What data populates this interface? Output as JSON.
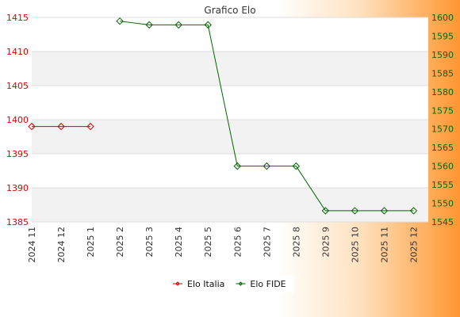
{
  "chart_data": {
    "type": "line",
    "title": "Grafico Elo",
    "categories": [
      "2024 11",
      "2024 12",
      "2025 1",
      "2025 2",
      "2025 3",
      "2025 4",
      "2025 5",
      "2025 6",
      "2025 7",
      "2025 8",
      "2025 9",
      "2025 10",
      "2025 11",
      "2025 12"
    ],
    "y_left": {
      "ticks": [
        1385,
        1390,
        1395,
        1400,
        1405,
        1410,
        1415
      ],
      "range": [
        1385,
        1415
      ],
      "color": "#dd0000"
    },
    "y_right": {
      "ticks": [
        1545,
        1550,
        1555,
        1560,
        1565,
        1570,
        1575,
        1580,
        1585,
        1590,
        1595,
        1600
      ],
      "range": [
        1545,
        1600
      ],
      "color": "#006600"
    },
    "series": [
      {
        "name": "Elo Italia",
        "axis": "left",
        "color": "#dd0000",
        "values": [
          1399,
          1399,
          1399,
          null,
          null,
          null,
          null,
          null,
          null,
          null,
          null,
          null,
          null,
          null
        ]
      },
      {
        "name": "Elo FIDE",
        "axis": "right",
        "color": "#006600",
        "values": [
          null,
          null,
          null,
          1599,
          1598,
          1598,
          1598,
          1560,
          1560,
          1560,
          1548,
          1548,
          1548,
          1548
        ]
      }
    ],
    "grid": true,
    "legend_position": "bottom"
  }
}
